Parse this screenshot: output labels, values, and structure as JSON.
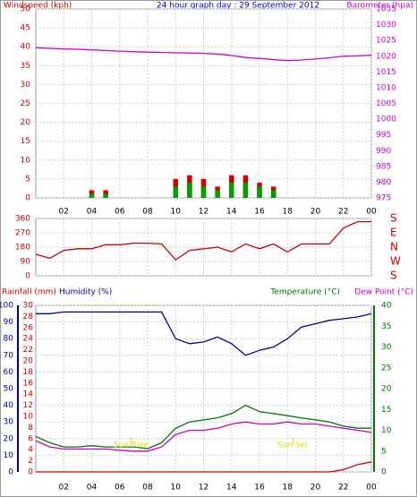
{
  "chart_data": [
    {
      "type": "line",
      "title": "24 hour graph day : 29 September 2012",
      "ylabel": "Windspeed (kph)",
      "y2label": "Barometer (hpa)",
      "xlim": [
        0,
        24
      ],
      "xticks": [
        {
          "value": 2,
          "label": "02"
        },
        {
          "value": 4,
          "label": "04"
        },
        {
          "value": 6,
          "label": "06"
        },
        {
          "value": 8,
          "label": "08"
        },
        10,
        12,
        14,
        16,
        18,
        20,
        22,
        {
          "value": 24,
          "label": "00"
        }
      ],
      "ylim": [
        0,
        50
      ],
      "yticks": [
        0,
        5,
        10,
        15,
        20,
        25,
        30,
        35,
        40,
        45,
        50
      ],
      "y2lim": [
        975,
        1035
      ],
      "y2ticks": [
        975,
        980,
        985,
        990,
        995,
        1000,
        1005,
        1010,
        1015,
        1020,
        1025,
        1030,
        1035
      ],
      "grid": true,
      "x": [
        0,
        1,
        2,
        3,
        4,
        5,
        6,
        7,
        8,
        9,
        10,
        11,
        12,
        13,
        14,
        15,
        16,
        17,
        18,
        19,
        20,
        21,
        22,
        23,
        24
      ],
      "series": [
        {
          "type": "bar",
          "color": "#cc0000",
          "axis": "y",
          "values": [
            0,
            0,
            0,
            0,
            2,
            2,
            0,
            0,
            0,
            0,
            5,
            6,
            5,
            3,
            6,
            6,
            4,
            3,
            0,
            0,
            0,
            0,
            0,
            0,
            0
          ]
        },
        {
          "type": "bar",
          "color": "#00a000",
          "axis": "y",
          "values": [
            0,
            0,
            0,
            0,
            1,
            1,
            0,
            0,
            0,
            0,
            3,
            4,
            3,
            2,
            4,
            4,
            3,
            2,
            0,
            0,
            0,
            0,
            0,
            0,
            0
          ]
        },
        {
          "type": "line",
          "color": "#cc00cc",
          "axis": "y2",
          "values": [
            1022.7,
            1022.5,
            1022.3,
            1022.2,
            1022,
            1021.8,
            1021.6,
            1021.4,
            1021.3,
            1021.2,
            1021.1,
            1021,
            1020.9,
            1020.7,
            1020.2,
            1019.6,
            1019.3,
            1018.9,
            1018.6,
            1018.8,
            1019.1,
            1019.5,
            1020,
            1020.1,
            1020.3
          ]
        }
      ]
    },
    {
      "type": "line",
      "xlim": [
        0,
        24
      ],
      "xticks": [
        {
          "value": 2,
          "label": "02"
        },
        {
          "value": 4,
          "label": "04"
        },
        {
          "value": 6,
          "label": "06"
        },
        {
          "value": 8,
          "label": "08"
        },
        10,
        12,
        14,
        16,
        18,
        20,
        22,
        {
          "value": 24,
          "label": "00"
        }
      ],
      "ylim": [
        0,
        360
      ],
      "yticks": [
        0,
        90,
        180,
        270,
        360
      ],
      "y2lim": [
        0,
        360
      ],
      "y2ticks": [
        {
          "value": 0,
          "label": "S"
        },
        {
          "value": 90,
          "label": "W"
        },
        {
          "value": 180,
          "label": "N"
        },
        {
          "value": 270,
          "label": "E"
        },
        {
          "value": 360,
          "label": "S"
        }
      ],
      "grid": true,
      "x": [
        0,
        1,
        2,
        3,
        4,
        5,
        6,
        7,
        8,
        9,
        10,
        11,
        12,
        13,
        14,
        15,
        16,
        17,
        18,
        19,
        20,
        21,
        22,
        23,
        24
      ],
      "series": [
        {
          "type": "line",
          "color": "#cc0000",
          "axis": "y",
          "values": [
            135,
            110,
            160,
            170,
            170,
            195,
            195,
            205,
            205,
            200,
            100,
            160,
            170,
            180,
            150,
            200,
            170,
            200,
            150,
            200,
            200,
            200,
            300,
            340,
            340
          ]
        }
      ]
    },
    {
      "type": "line",
      "xlim": [
        0,
        24
      ],
      "xticks": [
        {
          "value": 2,
          "label": "02"
        },
        {
          "value": 4,
          "label": "04"
        },
        {
          "value": 6,
          "label": "06"
        },
        {
          "value": 8,
          "label": "08"
        },
        10,
        12,
        14,
        16,
        18,
        20,
        22,
        {
          "value": 24,
          "label": "00"
        }
      ],
      "ylim": [
        0,
        100
      ],
      "yticks": [
        0,
        10,
        20,
        30,
        40,
        50,
        60,
        70,
        80,
        90,
        100
      ],
      "y3lim": [
        0,
        30
      ],
      "y3ticks": [
        0,
        2,
        4,
        6,
        8,
        10,
        12,
        14,
        16,
        18,
        20,
        22,
        24,
        26,
        28,
        30
      ],
      "y2lim": [
        0,
        40
      ],
      "y2ticks": [
        0,
        5,
        10,
        15,
        20,
        25,
        30,
        35,
        40
      ],
      "grid": true,
      "x": [
        0,
        1,
        2,
        3,
        4,
        5,
        6,
        7,
        8,
        9,
        10,
        11,
        12,
        13,
        14,
        15,
        16,
        17,
        18,
        19,
        20,
        21,
        22,
        23,
        24
      ],
      "series": [
        {
          "name": "Rainfall (mm)",
          "type": "line",
          "color": "#dd0000",
          "axis": "y3",
          "values": [
            0,
            0,
            0,
            0,
            0,
            0,
            0,
            0,
            0,
            0,
            0,
            0,
            0,
            0,
            0,
            0,
            0,
            0,
            0,
            0,
            0,
            0,
            0.4,
            1.3,
            1.8
          ]
        },
        {
          "name": "Humidity (%)",
          "type": "line",
          "color": "#0000aa",
          "axis": "y",
          "values": [
            95,
            95,
            96,
            96,
            96,
            96,
            96,
            96,
            96,
            96,
            80,
            77,
            78,
            81,
            77,
            70,
            73,
            75,
            80,
            87,
            89,
            91,
            92,
            93,
            95
          ]
        },
        {
          "name": "Temperature (°C)",
          "type": "line",
          "color": "#007700",
          "axis": "y2",
          "values": [
            8.5,
            7,
            6,
            6,
            6.3,
            6,
            6,
            6,
            5.6,
            7,
            10.5,
            12,
            12.5,
            13,
            14,
            16,
            14.5,
            14,
            13.5,
            13,
            12.5,
            12,
            11,
            10.5,
            10.5
          ]
        },
        {
          "name": "Dew Point (°C)",
          "type": "line",
          "color": "#cc00cc",
          "axis": "y2",
          "values": [
            7.5,
            6,
            5.5,
            5.5,
            5.5,
            5.5,
            5.2,
            5,
            5,
            6,
            9,
            10,
            10,
            10.5,
            11.5,
            12,
            11.5,
            11.5,
            12,
            11.5,
            11.5,
            11,
            10.5,
            10,
            9.5
          ]
        }
      ],
      "annotations": [
        {
          "text": "Sun Rise",
          "x": 6.8
        },
        {
          "text": "Sun Set",
          "x": 18.4
        }
      ]
    }
  ]
}
